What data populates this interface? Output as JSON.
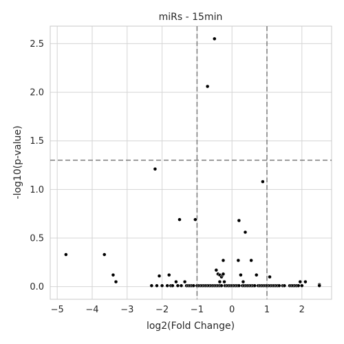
{
  "chart_data": {
    "type": "scatter",
    "title": "miRs - 15min",
    "xlabel": "log2(Fold Change)",
    "ylabel": "-log10(p-value)",
    "xlim": [
      -5.2,
      2.85
    ],
    "ylim": [
      -0.13,
      2.68
    ],
    "xticks": [
      -5,
      -4,
      -3,
      -2,
      -1,
      0,
      1,
      2
    ],
    "xtick_labels": [
      "−5",
      "−4",
      "−3",
      "−2",
      "−1",
      "0",
      "1",
      "2"
    ],
    "yticks": [
      0.0,
      0.5,
      1.0,
      1.5,
      2.0,
      2.5
    ],
    "ytick_labels": [
      "0.0",
      "0.5",
      "1.0",
      "1.5",
      "2.0",
      "2.5"
    ],
    "grid": true,
    "thresholds": {
      "x": [
        -1,
        1
      ],
      "y": 1.301
    },
    "points": [
      [
        -4.75,
        0.33
      ],
      [
        -3.65,
        0.33
      ],
      [
        -3.4,
        0.12
      ],
      [
        -3.32,
        0.05
      ],
      [
        -2.3,
        0.01
      ],
      [
        -2.2,
        1.21
      ],
      [
        -2.15,
        0.01
      ],
      [
        -2.08,
        0.11
      ],
      [
        -2.0,
        0.01
      ],
      [
        -1.85,
        0.01
      ],
      [
        -1.8,
        0.12
      ],
      [
        -1.75,
        0.01
      ],
      [
        -1.7,
        0.01
      ],
      [
        -1.6,
        0.05
      ],
      [
        -1.55,
        0.01
      ],
      [
        -1.5,
        0.69
      ],
      [
        -1.45,
        0.01
      ],
      [
        -1.35,
        0.05
      ],
      [
        -1.3,
        0.01
      ],
      [
        -1.25,
        0.01
      ],
      [
        -1.2,
        0.01
      ],
      [
        -1.15,
        0.01
      ],
      [
        -1.1,
        0.01
      ],
      [
        -1.05,
        0.69
      ],
      [
        -1.0,
        0.01
      ],
      [
        -0.95,
        0.01
      ],
      [
        -0.9,
        0.01
      ],
      [
        -0.85,
        0.01
      ],
      [
        -0.8,
        0.01
      ],
      [
        -0.75,
        0.01
      ],
      [
        -0.7,
        2.06
      ],
      [
        -0.7,
        0.01
      ],
      [
        -0.65,
        0.01
      ],
      [
        -0.6,
        0.01
      ],
      [
        -0.55,
        0.01
      ],
      [
        -0.5,
        2.55
      ],
      [
        -0.5,
        0.01
      ],
      [
        -0.45,
        0.17
      ],
      [
        -0.45,
        0.01
      ],
      [
        -0.4,
        0.13
      ],
      [
        -0.4,
        0.01
      ],
      [
        -0.35,
        0.12
      ],
      [
        -0.35,
        0.05
      ],
      [
        -0.35,
        0.01
      ],
      [
        -0.3,
        0.1
      ],
      [
        -0.3,
        0.01
      ],
      [
        -0.27,
        0.12
      ],
      [
        -0.25,
        0.27
      ],
      [
        -0.25,
        0.13
      ],
      [
        -0.22,
        0.05
      ],
      [
        -0.2,
        0.01
      ],
      [
        -0.15,
        0.01
      ],
      [
        -0.1,
        0.01
      ],
      [
        -0.05,
        0.01
      ],
      [
        0.0,
        0.01
      ],
      [
        0.05,
        0.01
      ],
      [
        0.1,
        0.01
      ],
      [
        0.15,
        0.01
      ],
      [
        0.18,
        0.27
      ],
      [
        0.2,
        0.68
      ],
      [
        0.2,
        0.01
      ],
      [
        0.25,
        0.12
      ],
      [
        0.3,
        0.01
      ],
      [
        0.32,
        0.05
      ],
      [
        0.35,
        0.01
      ],
      [
        0.38,
        0.56
      ],
      [
        0.4,
        0.01
      ],
      [
        0.45,
        0.01
      ],
      [
        0.5,
        0.01
      ],
      [
        0.55,
        0.27
      ],
      [
        0.55,
        0.01
      ],
      [
        0.6,
        0.01
      ],
      [
        0.65,
        0.01
      ],
      [
        0.7,
        0.12
      ],
      [
        0.75,
        0.01
      ],
      [
        0.8,
        0.01
      ],
      [
        0.85,
        0.01
      ],
      [
        0.88,
        1.08
      ],
      [
        0.9,
        0.01
      ],
      [
        0.95,
        0.01
      ],
      [
        1.0,
        0.01
      ],
      [
        1.05,
        0.01
      ],
      [
        1.08,
        0.1
      ],
      [
        1.1,
        0.01
      ],
      [
        1.15,
        0.01
      ],
      [
        1.2,
        0.01
      ],
      [
        1.25,
        0.01
      ],
      [
        1.3,
        0.01
      ],
      [
        1.35,
        0.01
      ],
      [
        1.45,
        0.01
      ],
      [
        1.5,
        0.01
      ],
      [
        1.65,
        0.01
      ],
      [
        1.7,
        0.01
      ],
      [
        1.75,
        0.01
      ],
      [
        1.8,
        0.01
      ],
      [
        1.85,
        0.01
      ],
      [
        1.9,
        0.01
      ],
      [
        1.95,
        0.05
      ],
      [
        2.0,
        0.01
      ],
      [
        2.1,
        0.05
      ],
      [
        2.5,
        0.02
      ],
      [
        2.5,
        0.01
      ]
    ],
    "colors": {
      "point": "#000000",
      "threshold": "#7a7a7a",
      "grid": "#d4d4d4",
      "text": "#262626"
    }
  }
}
